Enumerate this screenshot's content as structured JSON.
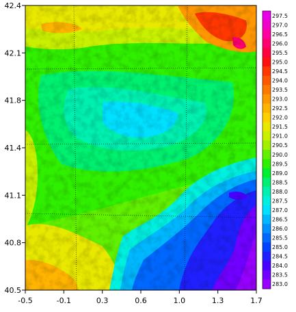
{
  "chart_data": {
    "type": "heatmap",
    "title": "",
    "xlabel": "",
    "ylabel": "",
    "xlim": [
      -0.5,
      1.7
    ],
    "ylim": [
      40.5,
      42.4
    ],
    "x_ticks": [
      "-0.5",
      "-0.1",
      "0.3",
      "0.6",
      "1.0",
      "1.3",
      "1.7"
    ],
    "y_ticks": [
      "42.4",
      "42.1",
      "41.8",
      "41.4",
      "41.1",
      "40.8",
      "40.5"
    ],
    "grid": true,
    "grid_style": "dotted",
    "colorbar": {
      "position": "right",
      "levels": [
        "297.5",
        "297.0",
        "296.5",
        "296.0",
        "295.5",
        "295.0",
        "294.5",
        "294.0",
        "293.5",
        "293.0",
        "292.5",
        "292.0",
        "291.5",
        "291.0",
        "290.5",
        "290.0",
        "289.5",
        "289.0",
        "288.5",
        "288.0",
        "287.5",
        "287.0",
        "286.5",
        "286.0",
        "285.5",
        "285.0",
        "284.5",
        "284.0",
        "283.5",
        "283.0"
      ],
      "colors": [
        "#e800e8",
        "#f000c8",
        "#ff00a0",
        "#ff0070",
        "#ff0040",
        "#ff1010",
        "#ff3800",
        "#ff5800",
        "#ff7800",
        "#ff9800",
        "#ffb400",
        "#ffd000",
        "#e8e800",
        "#c8f000",
        "#a0f000",
        "#60f000",
        "#30f000",
        "#00f030",
        "#00f070",
        "#00f0b0",
        "#00f0e0",
        "#00e0ff",
        "#00b8ff",
        "#0090ff",
        "#0068ff",
        "#0040ff",
        "#2020ff",
        "#4800ff",
        "#7000ff",
        "#9800ff"
      ]
    },
    "field_description_values": {
      "southeast_min": 283.0,
      "north_east_max": 297.5,
      "central_typical": 288.5,
      "west_typical": 290.5,
      "southwest_typical": 292.0
    }
  }
}
